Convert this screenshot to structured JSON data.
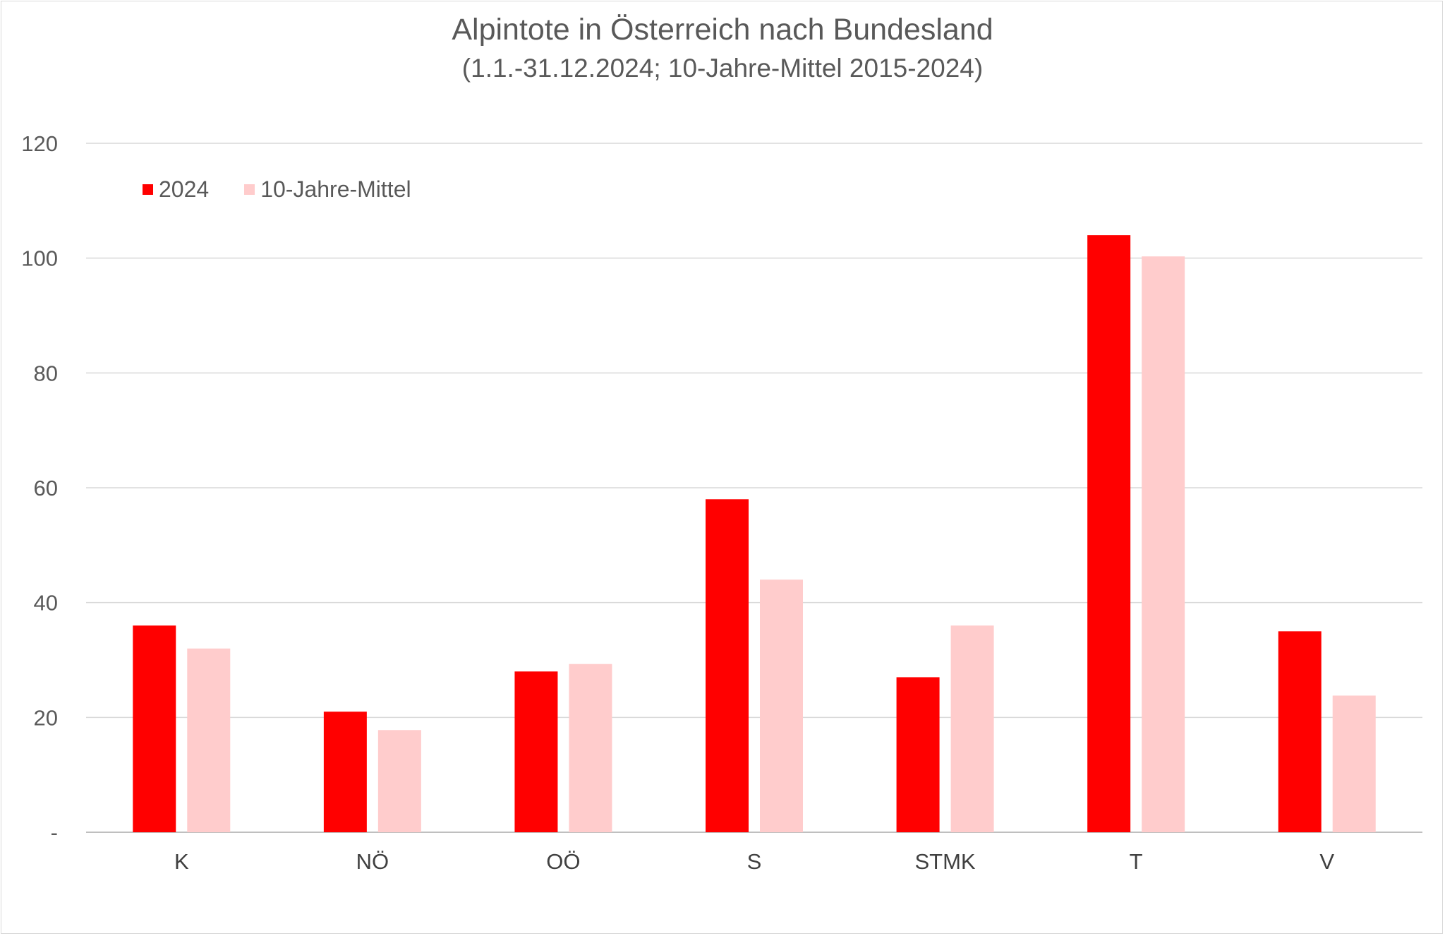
{
  "chart_data": {
    "type": "bar",
    "title": "Alpintote in Österreich nach Bundesland",
    "subtitle": "(1.1.-31.12.2024; 10-Jahre-Mittel 2015-2024)",
    "categories": [
      "K",
      "NÖ",
      "OÖ",
      "S",
      "STMK",
      "T",
      "V"
    ],
    "series": [
      {
        "name": "2024",
        "color": "#ff0000",
        "values": [
          36,
          21,
          28,
          58,
          27,
          104,
          35
        ]
      },
      {
        "name": "10-Jahre-Mittel",
        "color": "#ffcccc",
        "values": [
          32,
          17.8,
          29.3,
          44,
          36,
          100.3,
          23.8
        ]
      }
    ],
    "ylim": [
      0,
      120
    ],
    "yticks": [
      0,
      20,
      40,
      60,
      80,
      100,
      120
    ],
    "ytick_labels": [
      "-",
      "20",
      "40",
      "60",
      "80",
      "100",
      "120"
    ],
    "grid": true,
    "legend_position": "top-left",
    "gridline_color": "#d9d9d9",
    "axis_color": "#bfbfbf"
  }
}
